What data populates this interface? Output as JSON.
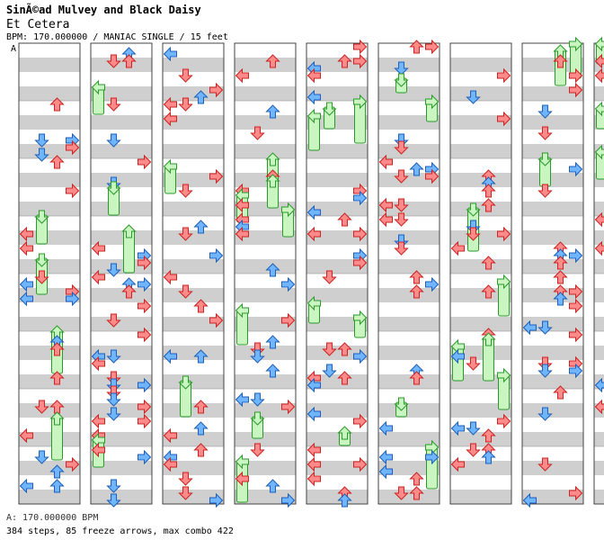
{
  "song": {
    "artist": "SinÃ©ad Mulvey and Black Daisy",
    "title": "Et Cetera",
    "info": "BPM: 170.000000 / MANIAC SINGLE / 15 feet"
  },
  "bpm_marker": "A",
  "footer": {
    "bpm_line": "A: 170.000000 BPM",
    "stats": "384 steps, 85 freeze arrows, max combo 422"
  },
  "chart_layout": {
    "columns": 10,
    "measures_per_column": 8,
    "lanes": [
      "left",
      "down",
      "up",
      "right"
    ],
    "beats_per_measure": 4
  },
  "colors": {
    "quarter": "#ff8a8a",
    "quarter_stroke": "#cc2222",
    "eighth": "#6fb5ff",
    "eighth_stroke": "#1f5fb8",
    "freeze": "#c8f5c0",
    "freeze_stroke": "#2a9a2a",
    "stripe": "#cfcfcf",
    "border": "#444444"
  },
  "chart_data": {
    "type": "table",
    "total_steps": 384,
    "freeze_arrows": 85,
    "max_combo": 422,
    "bpm": 170,
    "difficulty": "MANIAC SINGLE",
    "feet": 15
  }
}
